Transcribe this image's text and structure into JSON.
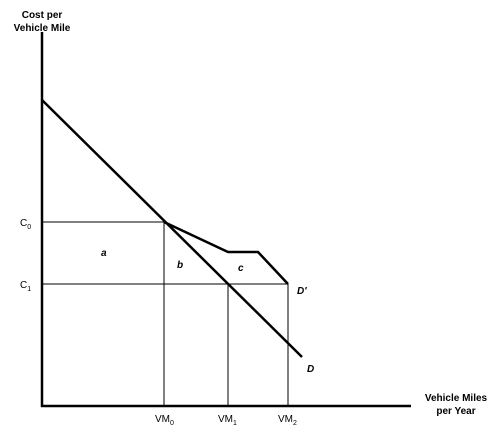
{
  "axes": {
    "y_label": [
      "Cost per",
      "Vehicle Mile"
    ],
    "x_label": [
      "Vehicle Miles",
      "per Year"
    ]
  },
  "y_ticks": [
    {
      "base": "C",
      "sub": "0"
    },
    {
      "base": "C",
      "sub": "1"
    }
  ],
  "x_ticks": [
    {
      "base": "VM",
      "sub": "0"
    },
    {
      "base": "VM",
      "sub": "1"
    },
    {
      "base": "VM",
      "sub": "2"
    }
  ],
  "regions": [
    "a",
    "b",
    "c"
  ],
  "curves": [
    "D",
    "D'"
  ]
}
